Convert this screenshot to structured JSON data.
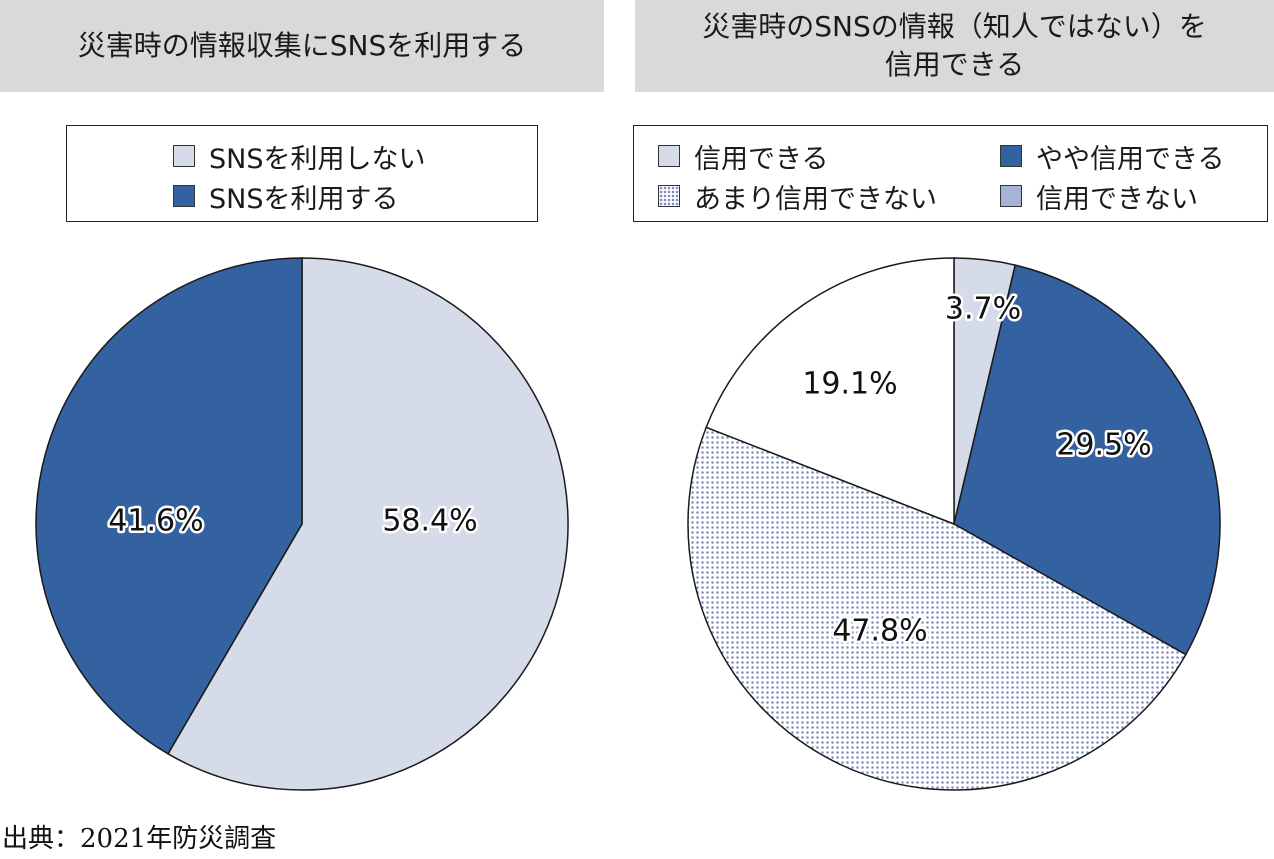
{
  "source": "出典：2021年防災調査",
  "chart_data": [
    {
      "type": "pie",
      "title": "災害時の情報収集にSNSを利用する",
      "legend": [
        "SNSを利用しない",
        "SNSを利用する"
      ],
      "slices": [
        {
          "name": "SNSを利用しない",
          "value": 58.4,
          "label": "58.4%",
          "color": "#d6dbea",
          "pattern": "solid"
        },
        {
          "name": "SNSを利用する",
          "value": 41.6,
          "label": "41.6%",
          "color": "#34619f",
          "pattern": "solid"
        }
      ],
      "start": "12 o'clock",
      "direction": "clockwise"
    },
    {
      "type": "pie",
      "title_lines": [
        "災害時のSNSの情報（知人ではない）を",
        "信用できる"
      ],
      "legend": [
        "信用できる",
        "やや信用できる",
        "あまり信用できない",
        "信用できない"
      ],
      "slices": [
        {
          "name": "信用できる",
          "value": 3.7,
          "label": "3.7%",
          "color": "#d6dbea",
          "pattern": "solid"
        },
        {
          "name": "やや信用できる",
          "value": 29.5,
          "label": "29.5%",
          "color": "#34619f",
          "pattern": "solid"
        },
        {
          "name": "あまり信用できない",
          "value": 47.8,
          "label": "47.8%",
          "color": "#a6b3d8",
          "pattern": "dotted"
        },
        {
          "name": "信用できない",
          "value": 19.1,
          "label": "19.1%",
          "color": "#ffffff",
          "pattern": "solid"
        }
      ],
      "start": "12 o'clock",
      "direction": "clockwise"
    }
  ]
}
